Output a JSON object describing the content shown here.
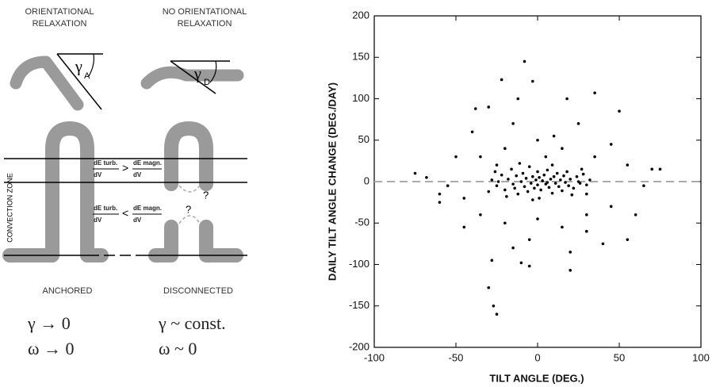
{
  "diagram": {
    "panels": [
      {
        "title": [
          "ORIENTATIONAL",
          "RELAXATION"
        ],
        "angle_label": "γ",
        "angle_sub": "A",
        "caption": "ANCHORED",
        "limits": [
          "γ → 0",
          "ω → 0"
        ]
      },
      {
        "title": [
          "NO ORIENTATIONAL",
          "RELAXATION"
        ],
        "angle_label": "γ",
        "angle_sub": "D",
        "caption": "DISCONNECTED",
        "limits": [
          "γ ~ const.",
          "ω ~ 0"
        ]
      }
    ],
    "zone_label": "CONVECTION ZONE",
    "conditions": [
      {
        "num_left": "dE turb.",
        "den_left": "dV",
        "relation": ">",
        "num_right": "dE magn.",
        "den_right": "dV"
      },
      {
        "num_left": "dE turb.",
        "den_left": "dV",
        "relation": "<",
        "num_right": "dE magn.",
        "den_right": "dV"
      }
    ],
    "unknown": "?"
  },
  "chart_data": {
    "type": "scatter",
    "xlabel": "TILT ANGLE (DEG.)",
    "ylabel": "DAILY TILT ANGLE CHANGE (DEG./DAY)",
    "xlim": [
      -100,
      100
    ],
    "xticks": [
      -100,
      -50,
      0,
      50,
      100
    ],
    "ylim": [
      -200,
      200
    ],
    "yticks": [
      -200,
      -150,
      -100,
      -50,
      0,
      50,
      100,
      150,
      200
    ],
    "reference_line": 0,
    "reference_color": "#aaaaaa",
    "color": "#000000",
    "x": [
      -8,
      -22,
      -3,
      -12,
      -30,
      -38,
      18,
      35,
      -25,
      -27,
      -30,
      -28,
      20,
      -5,
      -10,
      -75,
      -68,
      -60,
      -60,
      75,
      70,
      65,
      55,
      50,
      -45,
      40,
      30,
      -40,
      10,
      -15,
      25,
      45,
      -50,
      -35,
      -20,
      0,
      15,
      35,
      55,
      -55,
      -45,
      -35,
      -20,
      0,
      15,
      30,
      45,
      60,
      -5,
      -15,
      20,
      5,
      -25,
      30,
      -28,
      -25,
      -22,
      -20,
      -18,
      -16,
      -15,
      -13,
      -12,
      -10,
      -9,
      -8,
      -7,
      -6,
      -5,
      -4,
      -3,
      -2,
      -1,
      0,
      0,
      1,
      2,
      3,
      4,
      5,
      6,
      7,
      8,
      9,
      10,
      11,
      12,
      13,
      14,
      15,
      16,
      17,
      18,
      19,
      20,
      22,
      24,
      26,
      28,
      30,
      32,
      -30,
      -26,
      -19,
      -11,
      1,
      9,
      21,
      27,
      -24,
      25,
      -14,
      6,
      -3
    ],
    "y": [
      145,
      123,
      121,
      100,
      90,
      88,
      100,
      107,
      -160,
      -150,
      -128,
      -95,
      -107,
      -102,
      -98,
      10,
      5,
      -15,
      -25,
      15,
      15,
      -5,
      -70,
      85,
      -55,
      -75,
      -60,
      60,
      55,
      70,
      70,
      45,
      30,
      30,
      40,
      50,
      40,
      30,
      20,
      -5,
      -20,
      -40,
      -50,
      -45,
      -55,
      -40,
      -30,
      -40,
      -70,
      -80,
      -85,
      30,
      20,
      -15,
      2,
      -5,
      8,
      -10,
      3,
      15,
      -3,
      7,
      -15,
      0,
      10,
      -6,
      4,
      -12,
      18,
      -2,
      6,
      -8,
      2,
      -4,
      12,
      5,
      -10,
      1,
      8,
      -3,
      14,
      -7,
      3,
      -14,
      6,
      -2,
      10,
      -6,
      2,
      -11,
      7,
      -1,
      12,
      -5,
      3,
      -8,
      6,
      -2,
      9,
      -4,
      2,
      -12,
      12,
      -18,
      22,
      -20,
      20,
      -16,
      15,
      0,
      0,
      -8,
      -1,
      -22
    ]
  }
}
